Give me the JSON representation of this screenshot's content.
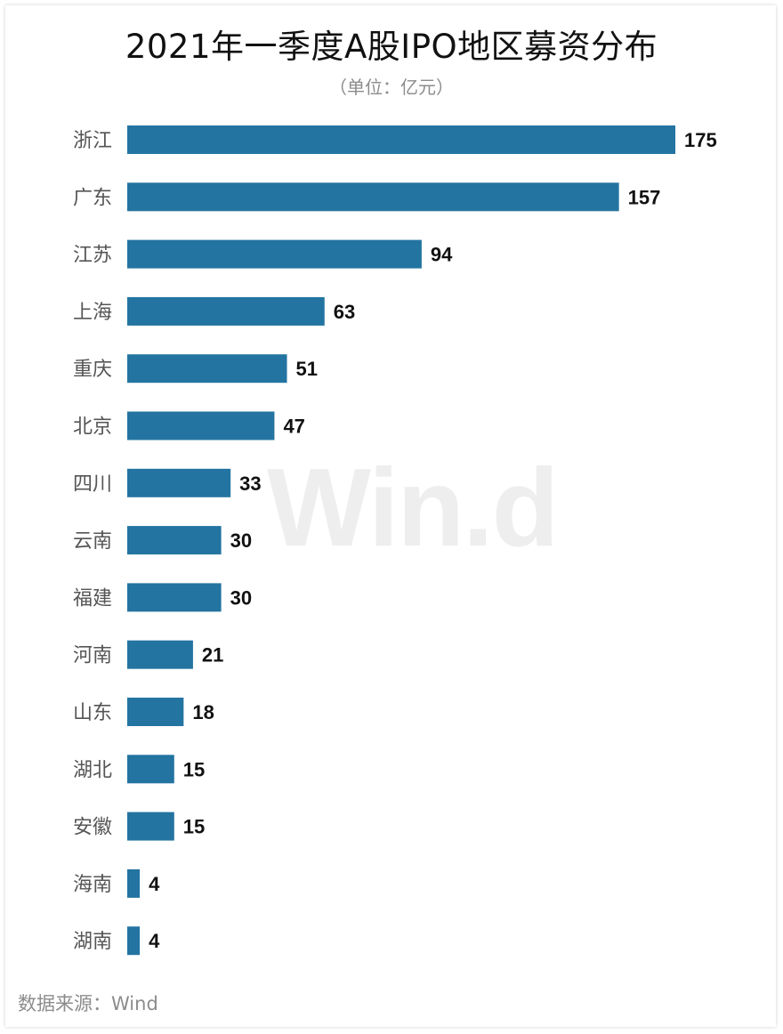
{
  "title": "2021年一季度A股IPO地区募资分布",
  "subtitle": "（单位：亿元）",
  "watermark": "Win.d",
  "source": "数据来源：Wind",
  "colors": {
    "bar": "#2374a1",
    "label": "#555555",
    "value": "#111111"
  },
  "chart_data": {
    "type": "bar",
    "orientation": "horizontal",
    "title": "2021年一季度A股IPO地区募资分布",
    "subtitle": "（单位：亿元）",
    "categories": [
      "浙江",
      "广东",
      "江苏",
      "上海",
      "重庆",
      "北京",
      "四川",
      "云南",
      "福建",
      "河南",
      "山东",
      "湖北",
      "安徽",
      "海南",
      "湖南"
    ],
    "values": [
      175,
      157,
      94,
      63,
      51,
      47,
      33,
      30,
      30,
      21,
      18,
      15,
      15,
      4,
      4
    ],
    "xlim": [
      0,
      175
    ],
    "grid": false,
    "legend": "none",
    "data_labels": true
  }
}
